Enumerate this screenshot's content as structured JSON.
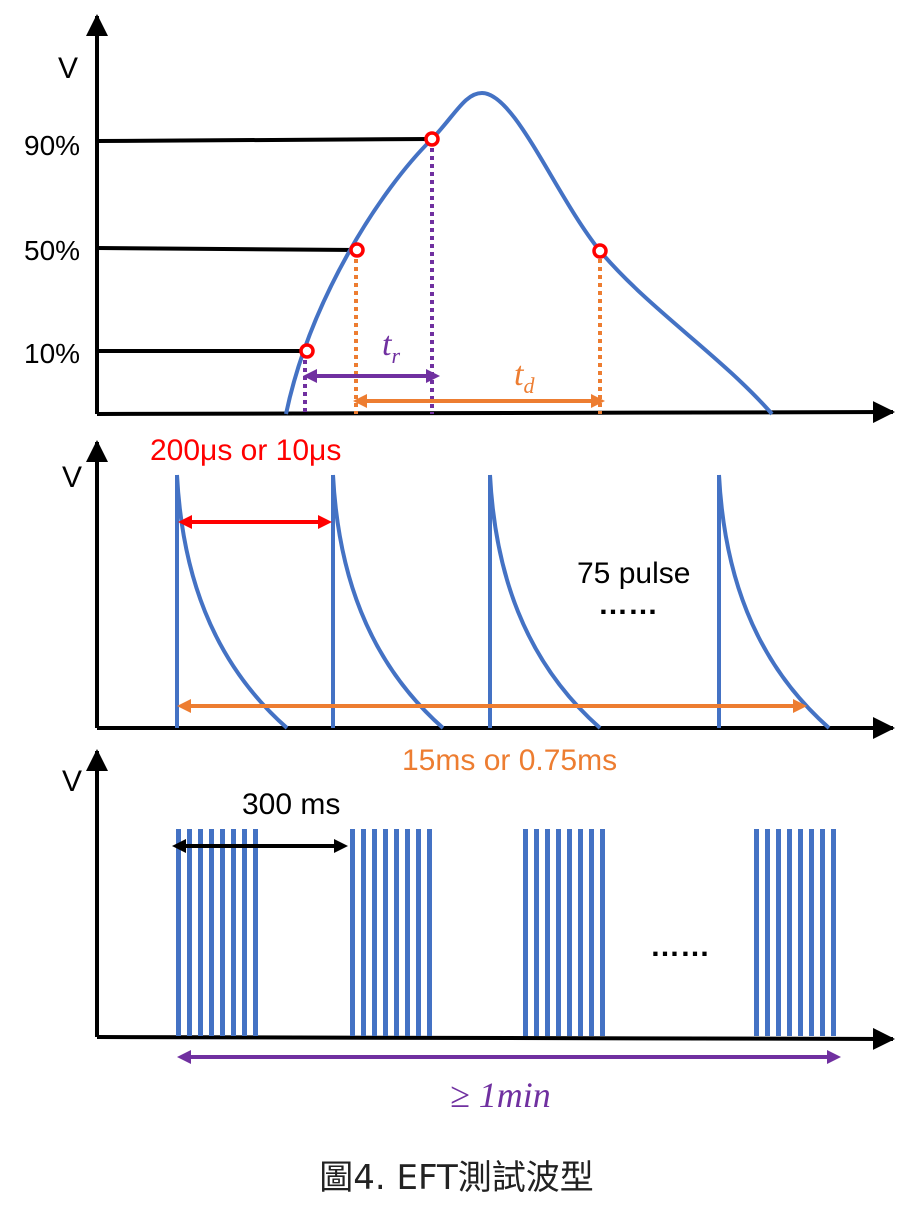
{
  "colors": {
    "wave": "#4472C4",
    "axis": "#000000",
    "rise": "#7030A0",
    "decay": "#ED7D31",
    "marker": "#FF0000",
    "highlight": "#FF0000"
  },
  "panel1": {
    "y_axis_label": "V",
    "levels": [
      "90%",
      "50%",
      "10%"
    ],
    "rise_time_label": "t",
    "rise_time_sub": "r",
    "decay_time_label": "t",
    "decay_time_sub": "d"
  },
  "panel2": {
    "y_axis_label": "V",
    "period_label": "200μs or 10μs",
    "pulse_count_label": "75 pulse",
    "ellipsis": "……",
    "burst_duration_label": "15ms or 0.75ms",
    "pulses_drawn": 4
  },
  "panel3": {
    "y_axis_label": "V",
    "burst_period_label": "300 ms",
    "ellipsis": "……",
    "test_duration_label": "≥ 1min",
    "bursts_drawn": 4,
    "lines_per_burst": 8
  },
  "caption": "圖4. EFT測試波型"
}
